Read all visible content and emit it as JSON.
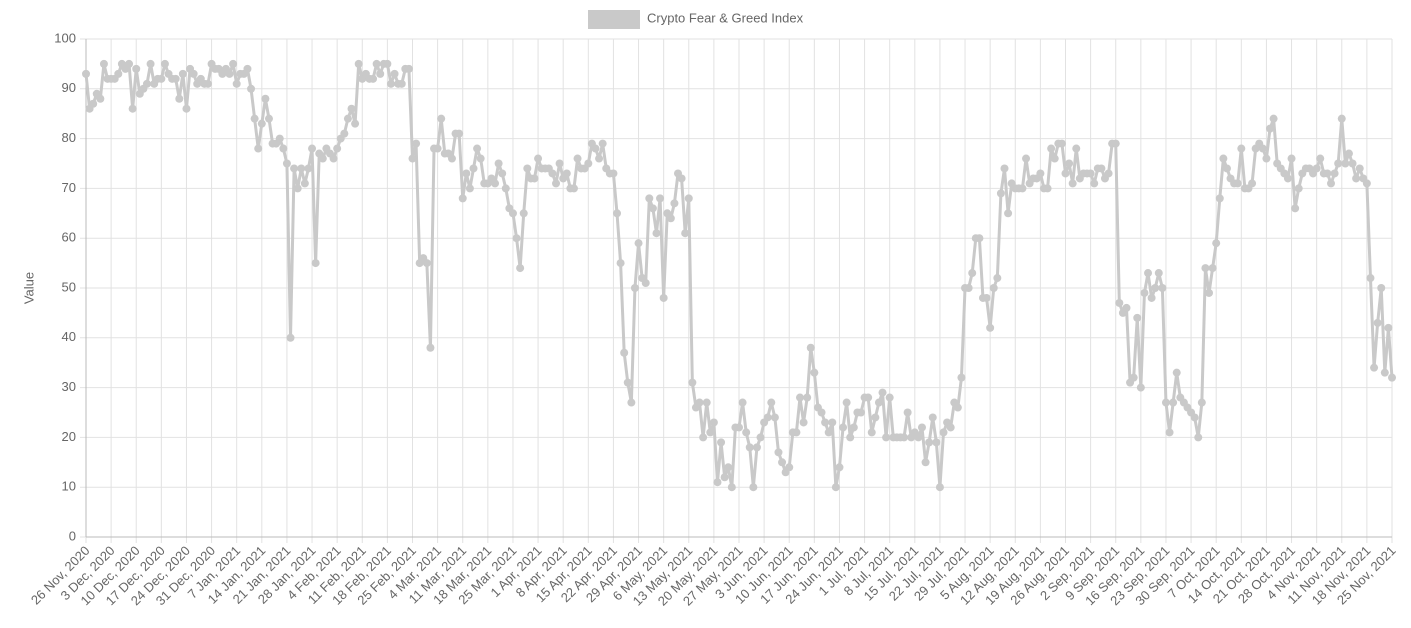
{
  "chart_data": {
    "type": "line",
    "y_label": "Value",
    "ylim": [
      0,
      100
    ],
    "yticks": [
      0,
      10,
      20,
      30,
      40,
      50,
      60,
      70,
      80,
      90,
      100
    ],
    "grid": true,
    "legend": "top",
    "categories": [
      "26 Nov, 2020",
      null,
      null,
      null,
      null,
      null,
      null,
      "3 Dec, 2020",
      null,
      null,
      null,
      null,
      null,
      null,
      "10 Dec, 2020",
      null,
      null,
      null,
      null,
      null,
      null,
      "17 Dec, 2020",
      null,
      null,
      null,
      null,
      null,
      null,
      "24 Dec, 2020",
      null,
      null,
      null,
      null,
      null,
      null,
      "31 Dec, 2020",
      null,
      null,
      null,
      null,
      null,
      null,
      "7 Jan, 2021",
      null,
      null,
      null,
      null,
      null,
      null,
      "14 Jan, 2021",
      null,
      null,
      null,
      null,
      null,
      null,
      "21 Jan, 2021",
      null,
      null,
      null,
      null,
      null,
      null,
      "28 Jan, 2021",
      null,
      null,
      null,
      null,
      null,
      null,
      "4 Feb, 2021",
      null,
      null,
      null,
      null,
      null,
      null,
      "11 Feb, 2021",
      null,
      null,
      null,
      null,
      null,
      null,
      "18 Feb, 2021",
      null,
      null,
      null,
      null,
      null,
      null,
      "25 Feb, 2021",
      null,
      null,
      null,
      null,
      null,
      null,
      "4 Mar, 2021",
      null,
      null,
      null,
      null,
      null,
      null,
      "11 Mar, 2021",
      null,
      null,
      null,
      null,
      null,
      null,
      "18 Mar, 2021",
      null,
      null,
      null,
      null,
      null,
      null,
      "25 Mar, 2021",
      null,
      null,
      null,
      null,
      null,
      null,
      "1 Apr, 2021",
      null,
      null,
      null,
      null,
      null,
      null,
      "8 Apr, 2021",
      null,
      null,
      null,
      null,
      null,
      null,
      "15 Apr, 2021",
      null,
      null,
      null,
      null,
      null,
      null,
      "22 Apr, 2021",
      null,
      null,
      null,
      null,
      null,
      null,
      "29 Apr, 2021",
      null,
      null,
      null,
      null,
      null,
      null,
      "6 May, 2021",
      null,
      null,
      null,
      null,
      null,
      null,
      "13 May, 2021",
      null,
      null,
      null,
      null,
      null,
      null,
      "20 May, 2021",
      null,
      null,
      null,
      null,
      null,
      null,
      "27 May, 2021",
      null,
      null,
      null,
      null,
      null,
      null,
      "3 Jun, 2021",
      null,
      null,
      null,
      null,
      null,
      null,
      "10 Jun, 2021",
      null,
      null,
      null,
      null,
      null,
      null,
      "17 Jun, 2021",
      null,
      null,
      null,
      null,
      null,
      null,
      "24 Jun, 2021",
      null,
      null,
      null,
      null,
      null,
      null,
      "1 Jul, 2021",
      null,
      null,
      null,
      null,
      null,
      null,
      "8 Jul, 2021",
      null,
      null,
      null,
      null,
      null,
      null,
      "15 Jul, 2021",
      null,
      null,
      null,
      null,
      null,
      null,
      "22 Jul, 2021",
      null,
      null,
      null,
      null,
      null,
      null,
      "29 Jul, 2021",
      null,
      null,
      null,
      null,
      null,
      null,
      "5 Aug, 2021",
      null,
      null,
      null,
      null,
      null,
      null,
      "12 Aug, 2021",
      null,
      null,
      null,
      null,
      null,
      null,
      "19 Aug, 2021",
      null,
      null,
      null,
      null,
      null,
      null,
      "26 Aug, 2021",
      null,
      null,
      null,
      null,
      null,
      null,
      "2 Sep, 2021",
      null,
      null,
      null,
      null,
      null,
      null,
      "9 Sep, 2021",
      null,
      null,
      null,
      null,
      null,
      null,
      "16 Sep, 2021",
      null,
      null,
      null,
      null,
      null,
      null,
      "23 Sep, 2021",
      null,
      null,
      null,
      null,
      null,
      null,
      "30 Sep, 2021",
      null,
      null,
      null,
      null,
      null,
      null,
      "7 Oct, 2021",
      null,
      null,
      null,
      null,
      null,
      null,
      "14 Oct, 2021",
      null,
      null,
      null,
      null,
      null,
      null,
      "21 Oct, 2021",
      null,
      null,
      null,
      null,
      null,
      null,
      "28 Oct, 2021",
      null,
      null,
      null,
      null,
      null,
      null,
      "4 Nov, 2021",
      null,
      null,
      null,
      null,
      null,
      null,
      "11 Nov, 2021",
      null,
      null,
      null,
      null,
      null,
      null,
      "18 Nov, 2021",
      null,
      null,
      null,
      null,
      null,
      null,
      "25 Nov, 2021"
    ],
    "series": [
      {
        "name": "Crypto Fear & Greed Index",
        "color": "#c9c9c9",
        "values": [
          93,
          86,
          87,
          89,
          88,
          95,
          92,
          92,
          92,
          93,
          95,
          94,
          95,
          86,
          94,
          89,
          90,
          91,
          95,
          91,
          92,
          92,
          95,
          93,
          92,
          92,
          88,
          93,
          86,
          94,
          93,
          91,
          92,
          91,
          91,
          95,
          94,
          94,
          93,
          94,
          93,
          95,
          91,
          93,
          93,
          94,
          90,
          84,
          78,
          83,
          88,
          84,
          79,
          79,
          80,
          78,
          75,
          40,
          74,
          70,
          74,
          71,
          74,
          78,
          55,
          77,
          76,
          78,
          77,
          76,
          78,
          80,
          81,
          84,
          86,
          83,
          95,
          92,
          93,
          92,
          92,
          95,
          93,
          95,
          95,
          91,
          93,
          91,
          91,
          94,
          94,
          76,
          79,
          55,
          56,
          55,
          38,
          78,
          78,
          84,
          77,
          77,
          76,
          81,
          81,
          68,
          73,
          70,
          74,
          78,
          76,
          71,
          71,
          72,
          71,
          75,
          73,
          70,
          66,
          65,
          60,
          54,
          65,
          74,
          72,
          72,
          76,
          74,
          74,
          74,
          73,
          71,
          75,
          72,
          73,
          70,
          70,
          76,
          74,
          74,
          75,
          79,
          78,
          76,
          79,
          74,
          73,
          73,
          65,
          55,
          37,
          31,
          27,
          50,
          59,
          52,
          51,
          68,
          66,
          61,
          68,
          48,
          65,
          64,
          67,
          73,
          72,
          61,
          68,
          31,
          26,
          27,
          20,
          27,
          21,
          23,
          11,
          19,
          12,
          14,
          10,
          22,
          22,
          27,
          21,
          18,
          10,
          18,
          20,
          23,
          24,
          27,
          24,
          17,
          15,
          13,
          14,
          21,
          21,
          28,
          23,
          28,
          38,
          33,
          26,
          25,
          23,
          21,
          23,
          10,
          14,
          22,
          27,
          20,
          22,
          25,
          25,
          28,
          28,
          21,
          24,
          27,
          29,
          20,
          28,
          20,
          20,
          20,
          20,
          25,
          20,
          21,
          20,
          22,
          15,
          19,
          24,
          19,
          10,
          21,
          23,
          22,
          27,
          26,
          32,
          50,
          50,
          53,
          60,
          60,
          48,
          48,
          42,
          50,
          52,
          69,
          74,
          65,
          71,
          70,
          70,
          70,
          76,
          71,
          72,
          72,
          73,
          70,
          70,
          78,
          76,
          79,
          79,
          73,
          75,
          71,
          78,
          72,
          73,
          73,
          73,
          71,
          74,
          74,
          72,
          73,
          79,
          79,
          47,
          45,
          46,
          31,
          32,
          44,
          30,
          49,
          53,
          48,
          50,
          53,
          50,
          27,
          21,
          27,
          33,
          28,
          27,
          26,
          25,
          24,
          20,
          27,
          54,
          49,
          54,
          59,
          68,
          76,
          74,
          72,
          71,
          71,
          78,
          70,
          70,
          71,
          78,
          79,
          78,
          76,
          82,
          84,
          75,
          74,
          73,
          72,
          76,
          66,
          70,
          73,
          74,
          74,
          73,
          74,
          76,
          73,
          73,
          71,
          73,
          75,
          84,
          75,
          77,
          75,
          72,
          74,
          72,
          71,
          52,
          34,
          43,
          50,
          33,
          42,
          32
        ]
      }
    ]
  }
}
